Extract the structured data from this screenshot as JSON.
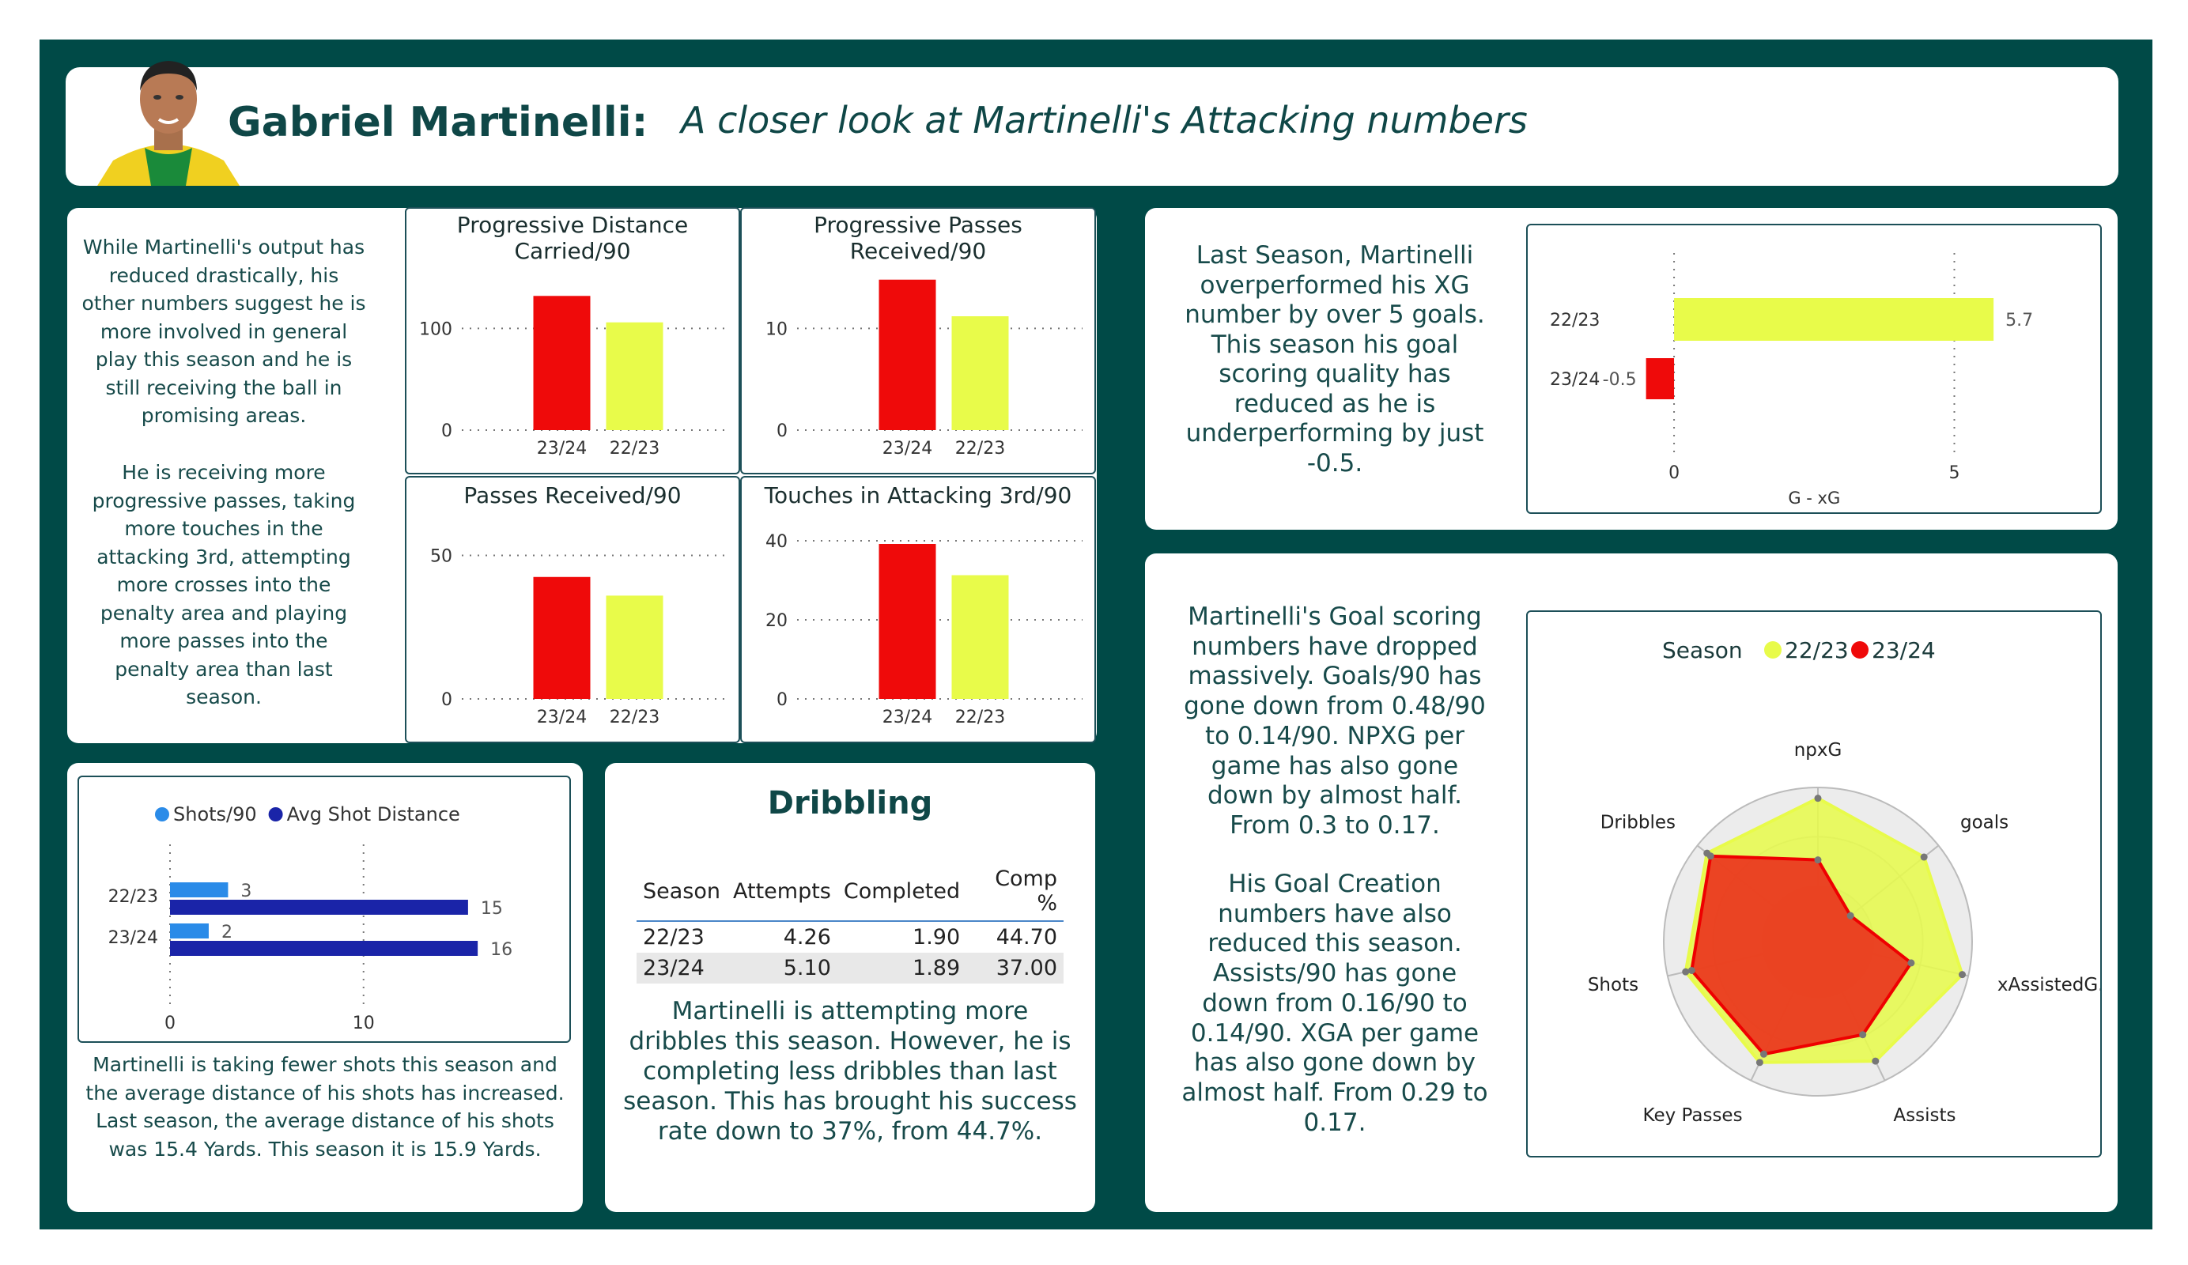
{
  "header": {
    "name": "Gabriel Martinelli:",
    "subtitle": "A closer look at Martinelli's Attacking numbers"
  },
  "left_text": {
    "p1": "While Martinelli's output has reduced drastically, his other numbers suggest he is more involved in general play this season and he is still receiving the ball in promising areas.",
    "p2": "He is receiving more progressive passes, taking more touches in the attacking 3rd, attempting more crosses into the penalty area and playing more passes into the penalty area than last season."
  },
  "colors": {
    "frame": "#004a47",
    "red": "#ef0a0a",
    "yellow": "#e8fb4a",
    "shots": "#2a8be8",
    "distance": "#1a24a8"
  },
  "chart_data": [
    {
      "id": "prog-distance",
      "type": "bar",
      "title": "Progressive Distance Carried/90",
      "categories": [
        "23/24",
        "22/23"
      ],
      "values": [
        132,
        106
      ],
      "ylim": [
        0,
        175
      ],
      "yticks": [
        0,
        100
      ]
    },
    {
      "id": "prog-passes",
      "type": "bar",
      "title": "Progressive Passes Received/90",
      "categories": [
        "23/24",
        "22/23"
      ],
      "values": [
        14.8,
        11.2
      ],
      "ylim": [
        0,
        17.5
      ],
      "yticks": [
        0,
        10
      ]
    },
    {
      "id": "passes-received",
      "type": "bar",
      "title": "Passes Received/90",
      "categories": [
        "23/24",
        "22/23"
      ],
      "values": [
        42.5,
        36
      ],
      "ylim": [
        0,
        62
      ],
      "yticks": [
        0,
        50
      ]
    },
    {
      "id": "touches-att3rd",
      "type": "bar",
      "title": "Touches in Attacking 3rd/90",
      "categories": [
        "23/24",
        "22/23"
      ],
      "values": [
        39.2,
        31.3
      ],
      "ylim": [
        0,
        45
      ],
      "yticks": [
        0,
        20,
        40
      ]
    },
    {
      "id": "shots",
      "type": "bar",
      "orientation": "horizontal",
      "categories": [
        "22/23",
        "23/24"
      ],
      "series": [
        {
          "name": "Shots/90",
          "values": [
            3,
            2
          ],
          "labels": [
            "3",
            "2"
          ]
        },
        {
          "name": "Avg Shot Distance",
          "values": [
            15.4,
            15.9
          ],
          "labels": [
            "15",
            "16"
          ]
        }
      ],
      "xlim": [
        0,
        19
      ],
      "xticks": [
        0,
        10
      ],
      "legend": "top"
    },
    {
      "id": "g-xg",
      "type": "bar",
      "orientation": "horizontal",
      "categories": [
        "22/23",
        "23/24"
      ],
      "values": [
        5.7,
        -0.5
      ],
      "labels": [
        "5.7",
        "-0.5"
      ],
      "xlabel": "G - xG",
      "xlim": [
        -1.2,
        6.7
      ],
      "xticks": [
        0,
        5
      ]
    },
    {
      "id": "radar",
      "type": "radar",
      "axes": [
        "npxG",
        "goals",
        "xAssistedG...",
        "Assists",
        "Key Passes",
        "Shots",
        "Dribbles"
      ],
      "series": [
        {
          "name": "22/23",
          "values": [
            0.93,
            0.88,
            0.96,
            0.86,
            0.87,
            0.88,
            0.92
          ]
        },
        {
          "name": "23/24",
          "values": [
            0.53,
            0.27,
            0.62,
            0.67,
            0.81,
            0.84,
            0.89
          ]
        }
      ],
      "legend_title": "Season",
      "legend": "top"
    }
  ],
  "shots_text": "Martinelli is taking fewer shots this season and the average distance of his shots has increased. Last season, the average distance of his shots was 15.4 Yards. This season it is 15.9 Yards.",
  "dribbling": {
    "title": "Dribbling",
    "columns": [
      "Season",
      "Attempts",
      "Completed",
      "Comp %"
    ],
    "rows": [
      [
        "22/23",
        "4.26",
        "1.90",
        "44.70"
      ],
      [
        "23/24",
        "5.10",
        "1.89",
        "37.00"
      ]
    ],
    "text": "Martinelli is attempting more dribbles this season. However, he is completing less dribbles than last season. This has brought his success rate down to 37%, from 44.7%."
  },
  "xg_text": "Last Season, Martinelli overperformed his XG number by over 5 goals. This season his goal scoring quality has reduced as he is underperforming by just -0.5.",
  "goals_text": {
    "p1": "Martinelli's Goal scoring numbers have dropped massively. Goals/90 has gone down from 0.48/90 to 0.14/90. NPXG per game has also gone down by almost half. From 0.3 to 0.17.",
    "p2": "His Goal Creation numbers have also reduced this season. Assists/90 has gone down from 0.16/90 to 0.14/90. XGA per game has also gone down by almost half. From 0.29 to 0.17."
  }
}
